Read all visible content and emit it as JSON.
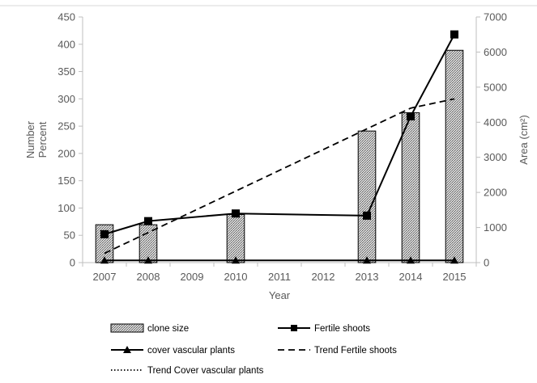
{
  "chart_data": {
    "type": "bar",
    "categories": [
      "2007",
      "2008",
      "2009",
      "2010",
      "2011",
      "2012",
      "2013",
      "2014",
      "2015"
    ],
    "xlabel": "Year",
    "ylabel_left": [
      "Number",
      "Percent"
    ],
    "ylabel_right": "Area (cm²)",
    "ylim_left": [
      0,
      450
    ],
    "ylim_right": [
      0,
      7000
    ],
    "yticks_left": [
      0,
      50,
      100,
      150,
      200,
      250,
      300,
      350,
      400,
      450
    ],
    "yticks_right": [
      0,
      1000,
      2000,
      3000,
      4000,
      5000,
      6000,
      7000
    ],
    "grid": false,
    "legend_position": "bottom",
    "series": [
      {
        "name": "clone size",
        "kind": "bar",
        "axis": "right",
        "values": [
          1080,
          1080,
          null,
          1370,
          null,
          null,
          3750,
          4270,
          6050
        ]
      },
      {
        "name": "Fertile shoots",
        "kind": "line",
        "marker": "square",
        "axis": "left",
        "values": [
          52,
          76,
          null,
          90,
          null,
          null,
          86,
          268,
          418
        ]
      },
      {
        "name": "cover vascular plants",
        "kind": "line",
        "marker": "triangle",
        "axis": "left",
        "values": [
          4,
          4,
          null,
          4,
          null,
          null,
          4,
          4,
          4
        ]
      },
      {
        "name": "Trend Fertile shoots",
        "kind": "trend",
        "style": "dashed",
        "axis": "left",
        "values": [
          17,
          55,
          93,
          131,
          169,
          207,
          245,
          283,
          300
        ]
      },
      {
        "name": "Trend Cover vascular plants",
        "kind": "trend",
        "style": "dotted",
        "axis": "left",
        "values": [
          4,
          4,
          4,
          4,
          4,
          4,
          4,
          4,
          4
        ]
      }
    ]
  }
}
